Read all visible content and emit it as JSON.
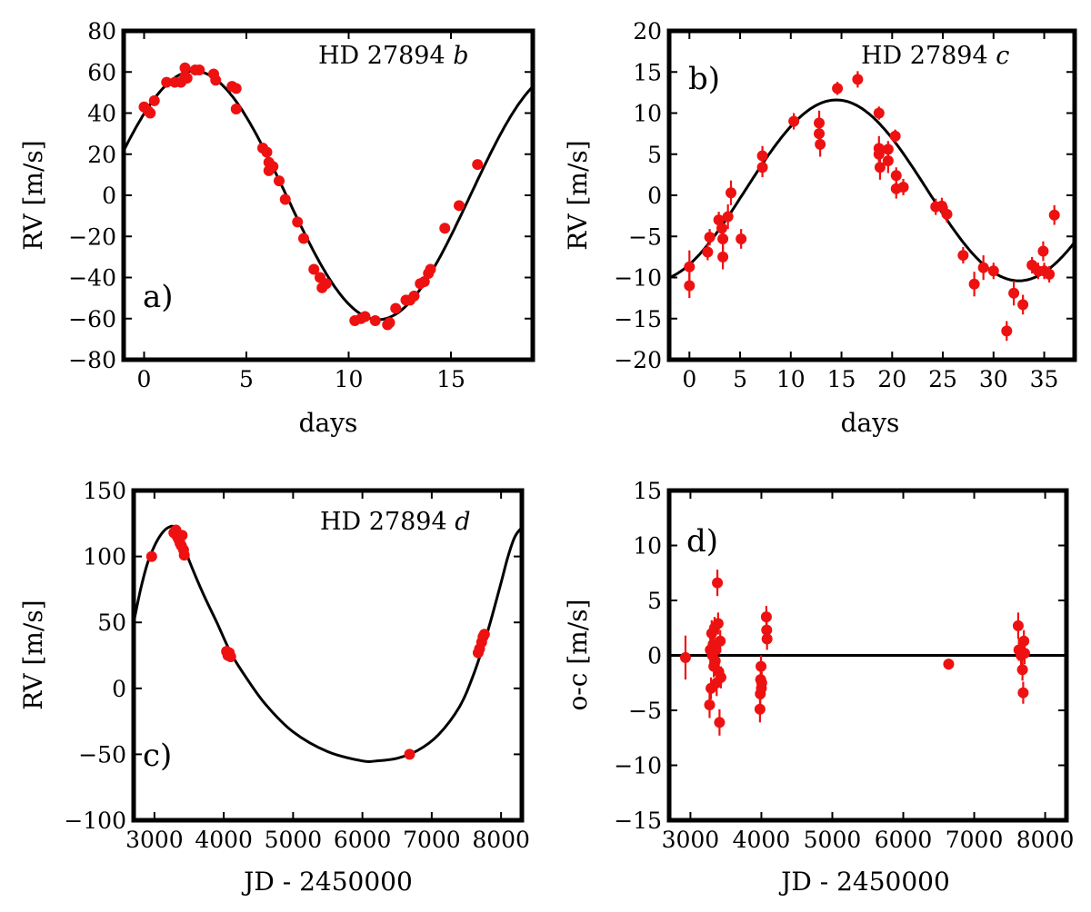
{
  "colors": {
    "points": "#ee1111",
    "curve": "#000000",
    "frame": "#000000"
  },
  "chart_data": [
    {
      "id": "a",
      "type": "scatter",
      "panel_letter": "a)",
      "planet": {
        "star": "HD 27894",
        "letter": "b"
      },
      "xlabel": "days",
      "ylabel": "RV [m/s]",
      "xlim": [
        -1,
        19
      ],
      "ylim": [
        -80,
        80
      ],
      "xticks": [
        0,
        5,
        10,
        15
      ],
      "xtick_labels": [
        "0",
        "5",
        "10",
        "15"
      ],
      "yticks": [
        -80,
        -60,
        -40,
        -20,
        0,
        20,
        40,
        60,
        80
      ],
      "ytick_labels": [
        "−80",
        "−60",
        "−40",
        "−20",
        "0",
        "20",
        "40",
        "60",
        "80"
      ],
      "model": {
        "kind": "sine",
        "amplitude": 60.5,
        "period": 18.0,
        "phase_peak": 2.45,
        "offset": 0
      },
      "points": [
        {
          "x": 0.0,
          "y": 43
        },
        {
          "x": 0.2,
          "y": 41
        },
        {
          "x": 0.3,
          "y": 40
        },
        {
          "x": 0.5,
          "y": 46
        },
        {
          "x": 1.1,
          "y": 55
        },
        {
          "x": 1.5,
          "y": 55
        },
        {
          "x": 1.8,
          "y": 55
        },
        {
          "x": 2.0,
          "y": 58
        },
        {
          "x": 2.0,
          "y": 62
        },
        {
          "x": 2.1,
          "y": 57
        },
        {
          "x": 2.5,
          "y": 61
        },
        {
          "x": 2.7,
          "y": 61
        },
        {
          "x": 3.4,
          "y": 59
        },
        {
          "x": 3.5,
          "y": 56
        },
        {
          "x": 4.3,
          "y": 53
        },
        {
          "x": 4.5,
          "y": 52
        },
        {
          "x": 4.5,
          "y": 42
        },
        {
          "x": 5.8,
          "y": 23
        },
        {
          "x": 6.0,
          "y": 21
        },
        {
          "x": 6.1,
          "y": 16
        },
        {
          "x": 6.1,
          "y": 12
        },
        {
          "x": 6.3,
          "y": 14
        },
        {
          "x": 6.6,
          "y": 7
        },
        {
          "x": 6.9,
          "y": -2
        },
        {
          "x": 7.5,
          "y": -13
        },
        {
          "x": 7.8,
          "y": -21
        },
        {
          "x": 8.3,
          "y": -36
        },
        {
          "x": 8.6,
          "y": -40
        },
        {
          "x": 8.7,
          "y": -45
        },
        {
          "x": 8.9,
          "y": -43
        },
        {
          "x": 10.3,
          "y": -61
        },
        {
          "x": 10.6,
          "y": -60
        },
        {
          "x": 10.8,
          "y": -59
        },
        {
          "x": 11.3,
          "y": -61
        },
        {
          "x": 11.9,
          "y": -63
        },
        {
          "x": 12.0,
          "y": -62
        },
        {
          "x": 12.3,
          "y": -55
        },
        {
          "x": 12.8,
          "y": -51
        },
        {
          "x": 13.0,
          "y": -51
        },
        {
          "x": 13.2,
          "y": -49
        },
        {
          "x": 13.5,
          "y": -43
        },
        {
          "x": 13.7,
          "y": -42
        },
        {
          "x": 13.9,
          "y": -38
        },
        {
          "x": 14.0,
          "y": -36
        },
        {
          "x": 14.7,
          "y": -16
        },
        {
          "x": 15.4,
          "y": -5
        },
        {
          "x": 16.3,
          "y": 15
        }
      ]
    },
    {
      "id": "b",
      "type": "scatter",
      "panel_letter": "b)",
      "planet": {
        "star": "HD 27894",
        "letter": "c"
      },
      "xlabel": "days",
      "ylabel": "RV [m/s]",
      "xlim": [
        -2,
        38
      ],
      "ylim": [
        -20,
        20
      ],
      "xticks": [
        0,
        5,
        10,
        15,
        20,
        25,
        30,
        35
      ],
      "xtick_labels": [
        "0",
        "5",
        "10",
        "15",
        "20",
        "25",
        "30",
        "35"
      ],
      "yticks": [
        -20,
        -15,
        -10,
        -5,
        0,
        5,
        10,
        15,
        20
      ],
      "ytick_labels": [
        "−20",
        "−15",
        "−10",
        "−5",
        "0",
        "5",
        "10",
        "15",
        "20"
      ],
      "model": {
        "kind": "sine",
        "amplitude": 11.0,
        "period": 36.0,
        "phase_peak": 14.5,
        "offset": 0.6
      },
      "points": [
        {
          "x": 0.0,
          "y": -8.7,
          "err": 2.0
        },
        {
          "x": 0.0,
          "y": -11.0,
          "err": 1.5
        },
        {
          "x": 1.8,
          "y": -6.9,
          "err": 1.0
        },
        {
          "x": 2.0,
          "y": -5.1,
          "err": 1.0
        },
        {
          "x": 2.9,
          "y": -3.0,
          "err": 1.0
        },
        {
          "x": 3.2,
          "y": -4.0,
          "err": 1.5
        },
        {
          "x": 3.3,
          "y": -5.3,
          "err": 1.5
        },
        {
          "x": 3.3,
          "y": -7.5,
          "err": 1.5
        },
        {
          "x": 3.8,
          "y": -2.6,
          "err": 1.5
        },
        {
          "x": 4.1,
          "y": 0.3,
          "err": 1.5
        },
        {
          "x": 5.1,
          "y": -5.3,
          "err": 1.2
        },
        {
          "x": 7.2,
          "y": 4.8,
          "err": 1.2
        },
        {
          "x": 7.2,
          "y": 3.4,
          "err": 1.2
        },
        {
          "x": 10.3,
          "y": 9.0,
          "err": 1.0
        },
        {
          "x": 12.8,
          "y": 8.8,
          "err": 1.5
        },
        {
          "x": 12.8,
          "y": 7.5,
          "err": 1.0
        },
        {
          "x": 12.9,
          "y": 6.2,
          "err": 1.5
        },
        {
          "x": 14.6,
          "y": 13.0,
          "err": 0.8
        },
        {
          "x": 16.6,
          "y": 14.1,
          "err": 1.0
        },
        {
          "x": 18.7,
          "y": 10.0,
          "err": 0.8
        },
        {
          "x": 18.7,
          "y": 5.7,
          "err": 1.5
        },
        {
          "x": 18.7,
          "y": 5.0,
          "err": 1.0
        },
        {
          "x": 18.8,
          "y": 3.4,
          "err": 1.5
        },
        {
          "x": 19.6,
          "y": 4.2,
          "err": 1.5
        },
        {
          "x": 19.6,
          "y": 5.6,
          "err": 1.0
        },
        {
          "x": 20.3,
          "y": 7.2,
          "err": 0.8
        },
        {
          "x": 20.4,
          "y": 2.4,
          "err": 1.0
        },
        {
          "x": 20.4,
          "y": 0.8,
          "err": 1.2
        },
        {
          "x": 21.1,
          "y": 1.0,
          "err": 1.0
        },
        {
          "x": 24.3,
          "y": -1.4,
          "err": 1.0
        },
        {
          "x": 24.9,
          "y": -1.3,
          "err": 1.0
        },
        {
          "x": 25.4,
          "y": -2.3,
          "err": 1.0
        },
        {
          "x": 27.0,
          "y": -7.3,
          "err": 1.0
        },
        {
          "x": 28.1,
          "y": -10.8,
          "err": 1.5
        },
        {
          "x": 29.0,
          "y": -8.8,
          "err": 1.5
        },
        {
          "x": 30.0,
          "y": -9.2,
          "err": 1.0
        },
        {
          "x": 31.3,
          "y": -16.5,
          "err": 1.2
        },
        {
          "x": 32.0,
          "y": -11.9,
          "err": 1.5
        },
        {
          "x": 32.9,
          "y": -13.3,
          "err": 1.2
        },
        {
          "x": 33.8,
          "y": -8.5,
          "err": 1.0
        },
        {
          "x": 34.4,
          "y": -9.2,
          "err": 1.0
        },
        {
          "x": 34.9,
          "y": -6.8,
          "err": 1.2
        },
        {
          "x": 35.0,
          "y": -9.2,
          "err": 1.0
        },
        {
          "x": 35.5,
          "y": -9.6,
          "err": 1.0
        },
        {
          "x": 36.0,
          "y": -2.4,
          "err": 1.2
        }
      ]
    },
    {
      "id": "c",
      "type": "scatter",
      "panel_letter": "c)",
      "planet": {
        "star": "HD 27894",
        "letter": "d"
      },
      "xlabel": "JD - 2450000",
      "ylabel": "RV [m/s]",
      "xlim": [
        2700,
        8300
      ],
      "ylim": [
        -100,
        150
      ],
      "xticks": [
        3000,
        4000,
        5000,
        6000,
        7000,
        8000
      ],
      "xtick_labels": [
        "3000",
        "4000",
        "5000",
        "6000",
        "7000",
        "8000"
      ],
      "yticks": [
        -100,
        -50,
        0,
        50,
        100,
        150
      ],
      "ytick_labels": [
        "−100",
        "−50",
        "0",
        "50",
        "100",
        "150"
      ],
      "model": {
        "kind": "curve",
        "points": [
          [
            2700,
            50
          ],
          [
            2800,
            75
          ],
          [
            2900,
            95
          ],
          [
            3000,
            108
          ],
          [
            3100,
            117
          ],
          [
            3200,
            122
          ],
          [
            3300,
            122
          ],
          [
            3400,
            112
          ],
          [
            3500,
            97
          ],
          [
            3700,
            72
          ],
          [
            3900,
            50
          ],
          [
            4100,
            27
          ],
          [
            4300,
            10
          ],
          [
            4600,
            -12
          ],
          [
            5000,
            -33
          ],
          [
            5500,
            -48
          ],
          [
            6000,
            -55
          ],
          [
            6200,
            -55
          ],
          [
            6500,
            -53
          ],
          [
            6800,
            -47
          ],
          [
            7100,
            -35
          ],
          [
            7400,
            -14
          ],
          [
            7600,
            10
          ],
          [
            7800,
            42
          ],
          [
            8000,
            80
          ],
          [
            8100,
            100
          ],
          [
            8200,
            115
          ],
          [
            8300,
            122
          ]
        ]
      },
      "points": [
        {
          "x": 2960,
          "y": 100
        },
        {
          "x": 3280,
          "y": 118
        },
        {
          "x": 3310,
          "y": 120
        },
        {
          "x": 3330,
          "y": 115
        },
        {
          "x": 3350,
          "y": 113
        },
        {
          "x": 3370,
          "y": 110
        },
        {
          "x": 3390,
          "y": 108
        },
        {
          "x": 3400,
          "y": 116
        },
        {
          "x": 3420,
          "y": 105
        },
        {
          "x": 3430,
          "y": 101
        },
        {
          "x": 4040,
          "y": 28
        },
        {
          "x": 4060,
          "y": 25
        },
        {
          "x": 4080,
          "y": 27
        },
        {
          "x": 4100,
          "y": 24
        },
        {
          "x": 6680,
          "y": -50
        },
        {
          "x": 7670,
          "y": 27
        },
        {
          "x": 7690,
          "y": 30
        },
        {
          "x": 7720,
          "y": 35
        },
        {
          "x": 7740,
          "y": 39
        },
        {
          "x": 7760,
          "y": 41
        }
      ]
    },
    {
      "id": "d",
      "type": "scatter",
      "panel_letter": "d)",
      "xlabel": "JD - 2450000",
      "ylabel": "o-c [m/s]",
      "xlim": [
        2700,
        8300
      ],
      "ylim": [
        -15,
        15
      ],
      "xticks": [
        3000,
        4000,
        5000,
        6000,
        7000,
        8000
      ],
      "xtick_labels": [
        "3000",
        "4000",
        "5000",
        "6000",
        "7000",
        "8000"
      ],
      "yticks": [
        -15,
        -10,
        -5,
        0,
        5,
        10,
        15
      ],
      "ytick_labels": [
        "−15",
        "−10",
        "−5",
        "0",
        "5",
        "10",
        "15"
      ],
      "model": {
        "kind": "hline",
        "y": 0
      },
      "points": [
        {
          "x": 2930,
          "y": -0.2,
          "err": 2.0
        },
        {
          "x": 3270,
          "y": -4.5,
          "err": 1.2
        },
        {
          "x": 3280,
          "y": 0.5,
          "err": 1.2
        },
        {
          "x": 3290,
          "y": -3.0,
          "err": 1.0
        },
        {
          "x": 3300,
          "y": 2.0,
          "err": 1.2
        },
        {
          "x": 3310,
          "y": 0.0,
          "err": 1.0
        },
        {
          "x": 3320,
          "y": 1.0,
          "err": 1.0
        },
        {
          "x": 3330,
          "y": -1.0,
          "err": 1.0
        },
        {
          "x": 3340,
          "y": 2.5,
          "err": 1.0
        },
        {
          "x": 3350,
          "y": -0.5,
          "err": 1.0
        },
        {
          "x": 3360,
          "y": 0.5,
          "err": 1.0
        },
        {
          "x": 3370,
          "y": -2.5,
          "err": 1.2
        },
        {
          "x": 3380,
          "y": 6.6,
          "err": 1.2
        },
        {
          "x": 3390,
          "y": 2.9,
          "err": 1.0
        },
        {
          "x": 3400,
          "y": -1.5,
          "err": 1.0
        },
        {
          "x": 3410,
          "y": -6.1,
          "err": 1.2
        },
        {
          "x": 3420,
          "y": 1.3,
          "err": 1.0
        },
        {
          "x": 3430,
          "y": -2.0,
          "err": 1.0
        },
        {
          "x": 3980,
          "y": -4.9,
          "err": 1.2
        },
        {
          "x": 3985,
          "y": -3.5,
          "err": 1.0
        },
        {
          "x": 3990,
          "y": -2.2,
          "err": 1.0
        },
        {
          "x": 3995,
          "y": -1.0,
          "err": 1.0
        },
        {
          "x": 4000,
          "y": -3.0,
          "err": 1.0
        },
        {
          "x": 4005,
          "y": -2.5,
          "err": 1.0
        },
        {
          "x": 4070,
          "y": 3.5,
          "err": 1.0
        },
        {
          "x": 4075,
          "y": 2.3,
          "err": 1.0
        },
        {
          "x": 4080,
          "y": 1.5,
          "err": 1.0
        },
        {
          "x": 6640,
          "y": -0.8,
          "err": 0.5
        },
        {
          "x": 7620,
          "y": 2.7,
          "err": 1.2
        },
        {
          "x": 7630,
          "y": 0.5,
          "err": 1.0
        },
        {
          "x": 7660,
          "y": 0.0,
          "err": 1.0
        },
        {
          "x": 7680,
          "y": -1.3,
          "err": 1.0
        },
        {
          "x": 7690,
          "y": -3.4,
          "err": 1.0
        },
        {
          "x": 7700,
          "y": 1.3,
          "err": 1.0
        },
        {
          "x": 7710,
          "y": 0.2,
          "err": 1.0
        }
      ]
    }
  ]
}
